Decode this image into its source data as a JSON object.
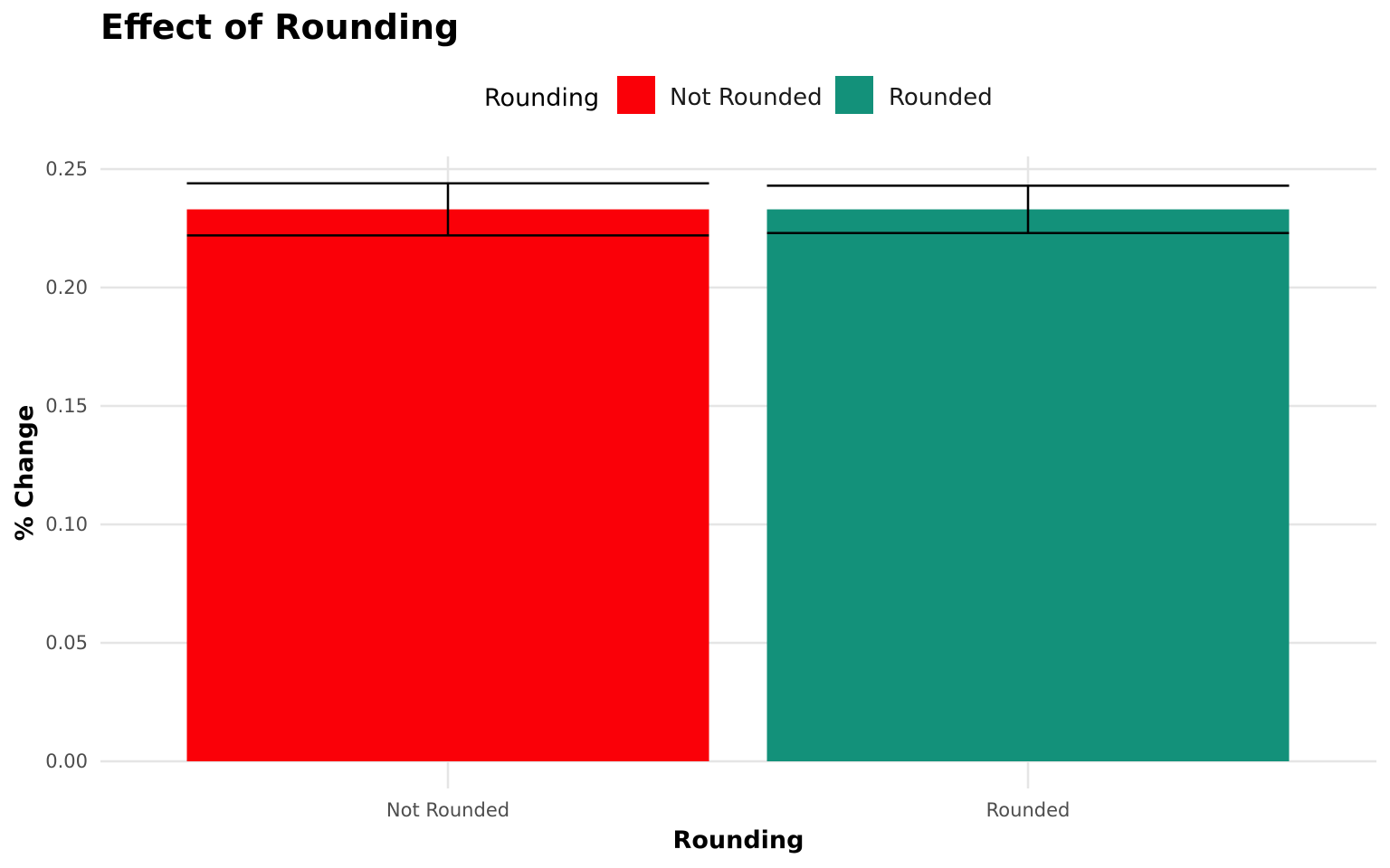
{
  "chart_data": {
    "type": "bar",
    "title": "Effect of Rounding",
    "xlabel": "Rounding",
    "ylabel": "% Change",
    "categories": [
      "Not Rounded",
      "Rounded"
    ],
    "values": [
      0.233,
      0.233
    ],
    "error_bars": [
      {
        "low": 0.222,
        "high": 0.244
      },
      {
        "low": 0.223,
        "high": 0.243
      }
    ],
    "colors": [
      "#fa0008",
      "#13917a"
    ],
    "ylim": [
      0,
      0.25
    ],
    "yticks": [
      "0.00",
      "0.05",
      "0.10",
      "0.15",
      "0.20",
      "0.25"
    ],
    "legend": {
      "title": "Rounding",
      "position": "top",
      "entries": [
        {
          "label": "Not Rounded",
          "color": "#fa0008"
        },
        {
          "label": "Rounded",
          "color": "#13917a"
        }
      ]
    },
    "grid": true
  }
}
